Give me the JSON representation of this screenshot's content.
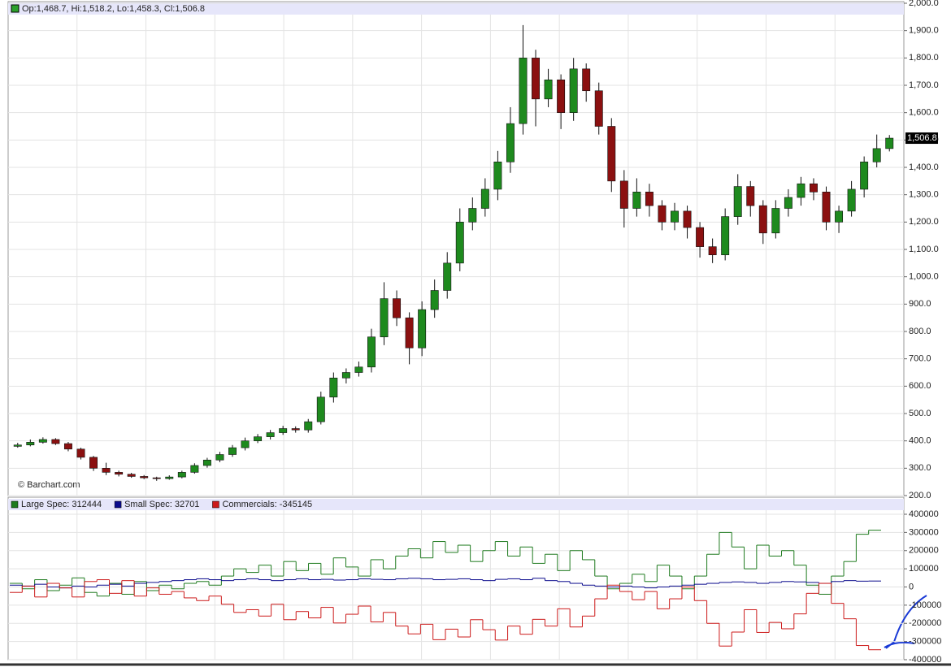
{
  "chart_data": [
    {
      "type": "candlestick",
      "info": "Op:1,468.7, Hi:1,518.2, Lo:1,458.3, Cl:1,506.8",
      "watermark": "© Barchart.com",
      "last_label": {
        "value": 1506.8,
        "label": "1,506.8"
      },
      "up_color": "#1e8a1e",
      "down_color": "#8b1010",
      "ylim": [
        200,
        2000
      ],
      "yticks": [
        {
          "value": 200,
          "label": "200.0"
        },
        {
          "value": 300,
          "label": "300.0"
        },
        {
          "value": 400,
          "label": "400.0"
        },
        {
          "value": 500,
          "label": "500.0"
        },
        {
          "value": 600,
          "label": "600.0"
        },
        {
          "value": 700,
          "label": "700.0"
        },
        {
          "value": 800,
          "label": "800.0"
        },
        {
          "value": 900,
          "label": "900.0"
        },
        {
          "value": 1000,
          "label": "1,000.0"
        },
        {
          "value": 1100,
          "label": "1,100.0"
        },
        {
          "value": 1200,
          "label": "1,200.0"
        },
        {
          "value": 1300,
          "label": "1,300.0"
        },
        {
          "value": 1400,
          "label": "1,400.0"
        },
        {
          "value": 1500,
          "label": "1,500.0"
        },
        {
          "value": 1600,
          "label": "1,600.0"
        },
        {
          "value": 1700,
          "label": "1,700.0"
        },
        {
          "value": 1800,
          "label": "1,800.0"
        },
        {
          "value": 1900,
          "label": "1,900.0"
        },
        {
          "value": 2000,
          "label": "2,000.0"
        }
      ],
      "grid": true,
      "open": [
        380,
        385,
        395,
        405,
        390,
        370,
        340,
        300,
        285,
        278,
        270,
        265,
        262,
        268,
        285,
        310,
        330,
        350,
        375,
        400,
        415,
        430,
        445,
        440,
        470,
        560,
        630,
        650,
        670,
        780,
        920,
        850,
        740,
        880,
        950,
        1050,
        1200,
        1250,
        1320,
        1420,
        1560,
        1800,
        1650,
        1720,
        1600,
        1760,
        1680,
        1550,
        1350,
        1250,
        1310,
        1260,
        1200,
        1240,
        1180,
        1110,
        1080,
        1220,
        1330,
        1260,
        1160,
        1250,
        1290,
        1340,
        1310,
        1200,
        1240,
        1320,
        1420,
        1468.7
      ],
      "high": [
        393,
        405,
        413,
        410,
        396,
        375,
        345,
        320,
        291,
        283,
        275,
        269,
        274,
        291,
        318,
        338,
        360,
        385,
        412,
        425,
        440,
        455,
        453,
        480,
        580,
        650,
        665,
        690,
        810,
        980,
        950,
        870,
        910,
        990,
        1090,
        1250,
        1290,
        1360,
        1460,
        1620,
        1920,
        1830,
        1760,
        1740,
        1800,
        1780,
        1710,
        1580,
        1390,
        1360,
        1340,
        1280,
        1270,
        1260,
        1200,
        1140,
        1250,
        1375,
        1350,
        1280,
        1280,
        1320,
        1365,
        1360,
        1330,
        1260,
        1350,
        1440,
        1520,
        1518.2
      ],
      "low": [
        375,
        380,
        390,
        385,
        362,
        332,
        290,
        275,
        270,
        265,
        260,
        254,
        258,
        263,
        280,
        302,
        322,
        342,
        365,
        392,
        405,
        422,
        430,
        430,
        460,
        540,
        610,
        635,
        650,
        750,
        820,
        680,
        710,
        850,
        920,
        1020,
        1170,
        1220,
        1280,
        1380,
        1520,
        1550,
        1620,
        1540,
        1570,
        1640,
        1520,
        1310,
        1180,
        1220,
        1220,
        1170,
        1170,
        1140,
        1070,
        1050,
        1060,
        1190,
        1220,
        1120,
        1140,
        1220,
        1260,
        1280,
        1170,
        1160,
        1220,
        1290,
        1400,
        1458.3
      ],
      "close": [
        385,
        395,
        405,
        390,
        370,
        340,
        300,
        285,
        278,
        270,
        265,
        262,
        268,
        285,
        310,
        330,
        350,
        375,
        400,
        415,
        430,
        445,
        440,
        470,
        560,
        630,
        650,
        670,
        780,
        920,
        850,
        740,
        880,
        950,
        1050,
        1200,
        1250,
        1320,
        1420,
        1560,
        1800,
        1650,
        1720,
        1600,
        1760,
        1680,
        1550,
        1350,
        1250,
        1310,
        1260,
        1200,
        1240,
        1180,
        1110,
        1080,
        1220,
        1330,
        1260,
        1160,
        1250,
        1290,
        1340,
        1310,
        1200,
        1240,
        1320,
        1420,
        1468.7,
        1506.8
      ]
    },
    {
      "type": "step",
      "ylim": [
        -400000,
        400000
      ],
      "yticks": [
        -400000,
        -300000,
        -200000,
        -100000,
        0,
        100000,
        200000,
        300000,
        400000
      ],
      "grid": true,
      "series": [
        {
          "name": "Large Spec: 312444",
          "color": "#1e7a1e",
          "values": [
            20000,
            -10000,
            40000,
            -20000,
            10000,
            50000,
            -30000,
            -50000,
            20000,
            -40000,
            30000,
            -20000,
            10000,
            -10000,
            20000,
            30000,
            10000,
            60000,
            100000,
            80000,
            120000,
            60000,
            140000,
            90000,
            130000,
            70000,
            160000,
            110000,
            60000,
            150000,
            100000,
            170000,
            210000,
            160000,
            250000,
            190000,
            230000,
            140000,
            200000,
            250000,
            170000,
            220000,
            130000,
            180000,
            90000,
            200000,
            150000,
            60000,
            -10000,
            20000,
            70000,
            30000,
            120000,
            60000,
            -10000,
            60000,
            180000,
            300000,
            220000,
            100000,
            230000,
            170000,
            200000,
            120000,
            10000,
            -40000,
            60000,
            140000,
            290000,
            312444
          ]
        },
        {
          "name": "Small Spec: 32701",
          "color": "#0a0a8c",
          "values": [
            10000,
            5000,
            15000,
            0,
            -5000,
            5000,
            0,
            10000,
            15000,
            5000,
            20000,
            25000,
            30000,
            35000,
            40000,
            45000,
            40000,
            35000,
            40000,
            45000,
            40000,
            35000,
            40000,
            45000,
            40000,
            42000,
            38000,
            40000,
            45000,
            42000,
            40000,
            45000,
            48000,
            45000,
            40000,
            42000,
            45000,
            40000,
            35000,
            42000,
            45000,
            40000,
            48000,
            35000,
            30000,
            20000,
            10000,
            5000,
            0,
            5000,
            0,
            -5000,
            0,
            5000,
            10000,
            15000,
            20000,
            25000,
            28000,
            25000,
            20000,
            25000,
            30000,
            28000,
            25000,
            20000,
            30000,
            35000,
            32000,
            32701
          ]
        },
        {
          "name": "Commercials: -345145",
          "color": "#cc1a1a",
          "values": [
            -30000,
            5000,
            -55000,
            20000,
            -5000,
            -55000,
            30000,
            40000,
            -35000,
            35000,
            -50000,
            -5000,
            -40000,
            -25000,
            -60000,
            -75000,
            -50000,
            -95000,
            -140000,
            -125000,
            -160000,
            -95000,
            -180000,
            -135000,
            -170000,
            -112000,
            -198000,
            -150000,
            -105000,
            -192000,
            -140000,
            -215000,
            -258000,
            -205000,
            -290000,
            -232000,
            -275000,
            -180000,
            -235000,
            -292000,
            -215000,
            -260000,
            -178000,
            -215000,
            -120000,
            -220000,
            -160000,
            -65000,
            10000,
            -25000,
            -70000,
            -25000,
            -120000,
            -65000,
            0,
            -75000,
            -200000,
            -325000,
            -248000,
            -125000,
            -250000,
            -195000,
            -230000,
            -148000,
            -35000,
            20000,
            -90000,
            -175000,
            -322000,
            -345145
          ]
        }
      ]
    }
  ]
}
